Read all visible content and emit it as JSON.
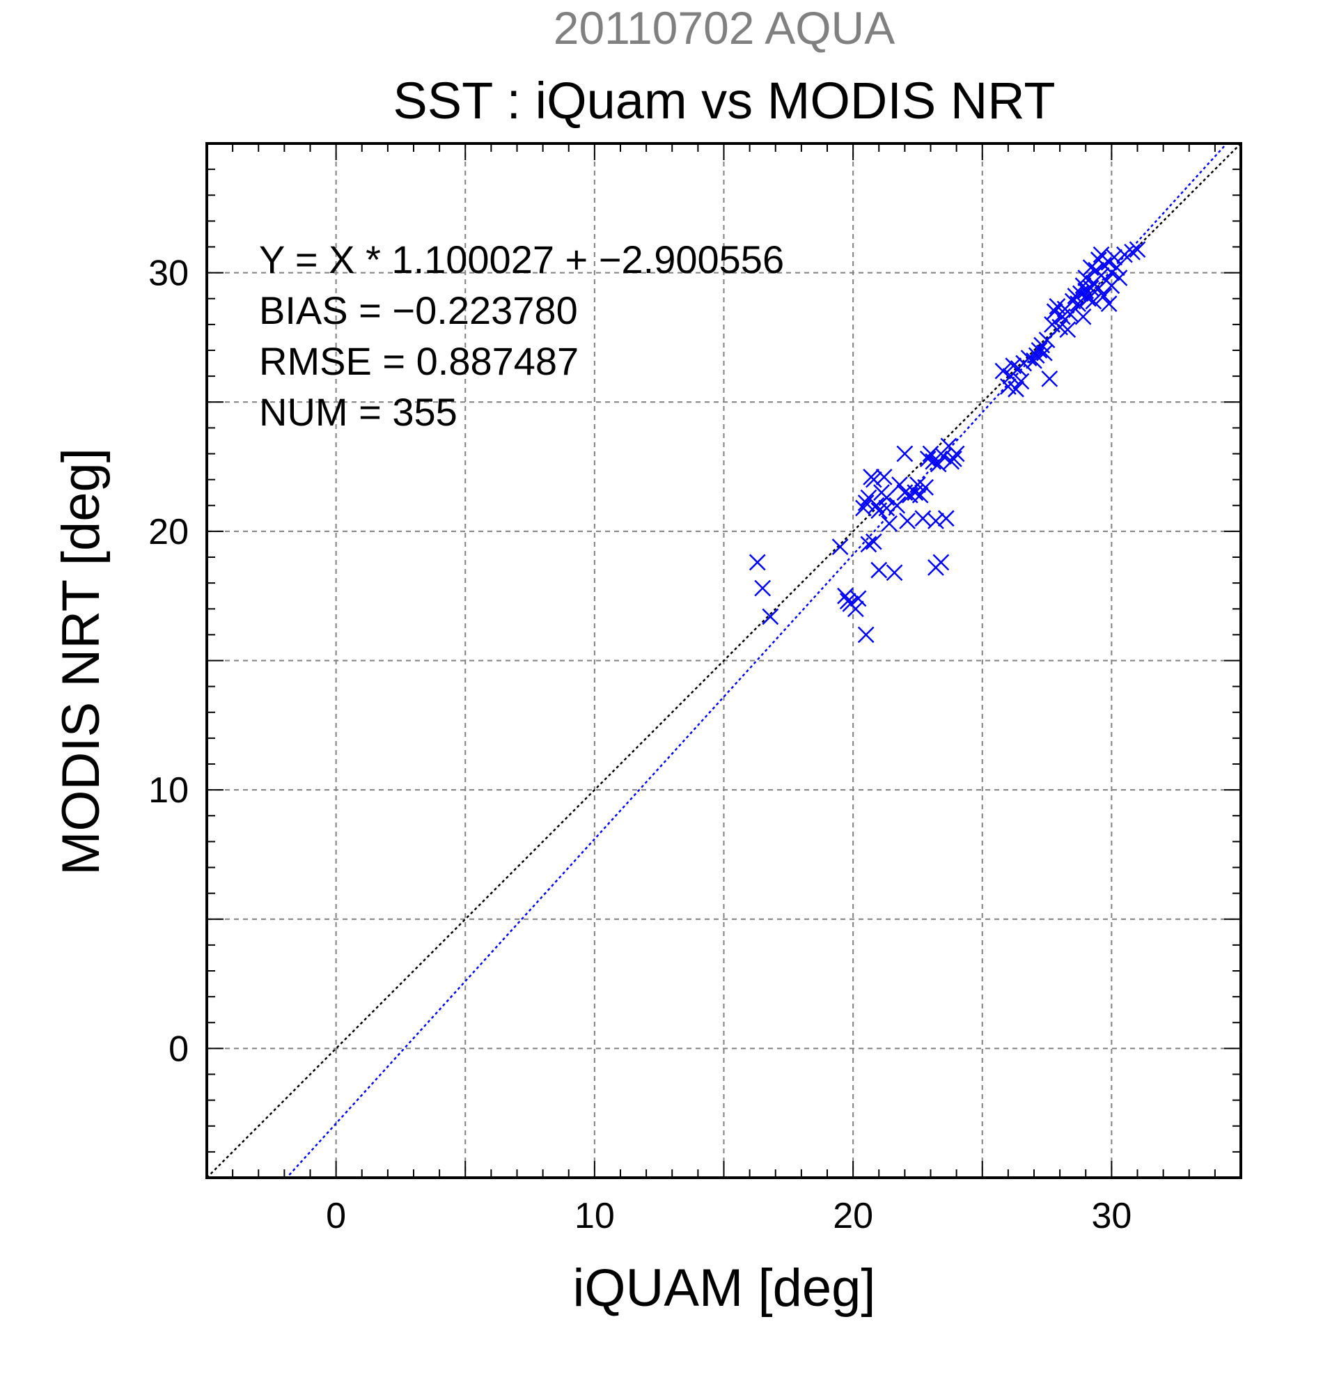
{
  "chart_data": {
    "type": "scatter",
    "subtitle": "20110702 AQUA",
    "title": "SST : iQuam vs MODIS NRT",
    "xlabel": "iQUAM [deg]",
    "ylabel": "MODIS NRT [deg]",
    "xlim": [
      -5,
      35
    ],
    "ylim": [
      -5,
      35
    ],
    "xticks": [
      0,
      10,
      20,
      30
    ],
    "yticks": [
      0,
      10,
      20,
      30
    ],
    "grid": true,
    "annotations": [
      "Y = X * 1.100027 + −2.900556",
      "BIAS = −0.223780",
      "RMSE = 0.887487",
      "NUM = 355"
    ],
    "lines": [
      {
        "name": "1:1",
        "slope": 1.0,
        "intercept": 0.0,
        "color": "#000000",
        "style": "dotted"
      },
      {
        "name": "fit",
        "slope": 1.100027,
        "intercept": -2.900556,
        "color": "#0000ff",
        "style": "dotted"
      }
    ],
    "colors": {
      "marker": "#0000ff",
      "subtitle": "#808080",
      "grid": "#808080"
    },
    "series": [
      {
        "marker": "x",
        "points": [
          [
            16.3,
            18.8
          ],
          [
            16.5,
            17.8
          ],
          [
            16.8,
            16.7
          ],
          [
            19.5,
            19.4
          ],
          [
            19.7,
            17.5
          ],
          [
            19.8,
            17.3
          ],
          [
            19.9,
            17.2
          ],
          [
            20.1,
            17.0
          ],
          [
            20.2,
            17.4
          ],
          [
            20.5,
            16.0
          ],
          [
            20.4,
            20.9
          ],
          [
            20.5,
            21.1
          ],
          [
            20.6,
            21.3
          ],
          [
            20.7,
            22.1
          ],
          [
            20.8,
            22.0
          ],
          [
            20.9,
            21.0
          ],
          [
            21.0,
            20.8
          ],
          [
            21.1,
            21.5
          ],
          [
            21.2,
            22.1
          ],
          [
            21.3,
            21.3
          ],
          [
            20.6,
            19.5
          ],
          [
            20.8,
            19.6
          ],
          [
            21.0,
            18.5
          ],
          [
            21.3,
            20.9
          ],
          [
            21.4,
            20.3
          ],
          [
            21.6,
            18.4
          ],
          [
            21.7,
            21.0
          ],
          [
            21.8,
            21.8
          ],
          [
            22.0,
            21.5
          ],
          [
            22.1,
            20.4
          ],
          [
            22.2,
            21.4
          ],
          [
            22.4,
            21.5
          ],
          [
            22.5,
            21.8
          ],
          [
            22.6,
            21.4
          ],
          [
            22.7,
            20.5
          ],
          [
            22.8,
            21.7
          ],
          [
            22.9,
            22.8
          ],
          [
            23.0,
            23.0
          ],
          [
            23.1,
            22.7
          ],
          [
            23.2,
            20.4
          ],
          [
            23.2,
            18.6
          ],
          [
            23.3,
            22.6
          ],
          [
            23.4,
            18.8
          ],
          [
            23.5,
            22.9
          ],
          [
            23.6,
            20.5
          ],
          [
            23.7,
            23.3
          ],
          [
            23.8,
            22.7
          ],
          [
            23.9,
            22.8
          ],
          [
            24.0,
            23.0
          ],
          [
            22.0,
            23.0
          ],
          [
            25.8,
            26.2
          ],
          [
            26.0,
            25.6
          ],
          [
            26.1,
            26.0
          ],
          [
            26.2,
            26.4
          ],
          [
            26.3,
            25.5
          ],
          [
            26.4,
            26.3
          ],
          [
            26.5,
            25.8
          ],
          [
            26.6,
            26.5
          ],
          [
            26.8,
            26.7
          ],
          [
            27.0,
            26.6
          ],
          [
            27.1,
            26.8
          ],
          [
            27.2,
            27.0
          ],
          [
            27.3,
            27.2
          ],
          [
            27.4,
            26.9
          ],
          [
            27.5,
            27.4
          ],
          [
            27.6,
            25.9
          ],
          [
            27.7,
            28.0
          ],
          [
            27.8,
            28.5
          ],
          [
            27.9,
            28.7
          ],
          [
            28.0,
            27.9
          ],
          [
            28.1,
            28.3
          ],
          [
            28.2,
            28.6
          ],
          [
            28.3,
            27.8
          ],
          [
            28.4,
            28.4
          ],
          [
            28.5,
            28.9
          ],
          [
            28.6,
            29.1
          ],
          [
            28.7,
            28.8
          ],
          [
            28.8,
            29.2
          ],
          [
            28.9,
            29.5
          ],
          [
            29.0,
            29.3
          ],
          [
            29.0,
            29.8
          ],
          [
            29.1,
            29.0
          ],
          [
            29.2,
            30.2
          ],
          [
            29.3,
            29.6
          ],
          [
            29.3,
            28.9
          ],
          [
            29.4,
            30.1
          ],
          [
            29.5,
            29.4
          ],
          [
            29.5,
            30.5
          ],
          [
            29.6,
            29.9
          ],
          [
            29.7,
            30.3
          ],
          [
            29.7,
            29.1
          ],
          [
            29.8,
            29.7
          ],
          [
            29.9,
            30.4
          ],
          [
            29.9,
            28.8
          ],
          [
            30.0,
            30.0
          ],
          [
            30.0,
            29.5
          ],
          [
            30.1,
            30.6
          ],
          [
            30.2,
            30.2
          ],
          [
            30.3,
            29.8
          ],
          [
            30.5,
            30.7
          ],
          [
            30.8,
            30.8
          ],
          [
            31.0,
            30.9
          ],
          [
            29.6,
            30.7
          ],
          [
            29.2,
            29.4
          ],
          [
            28.9,
            28.3
          ]
        ]
      }
    ]
  }
}
